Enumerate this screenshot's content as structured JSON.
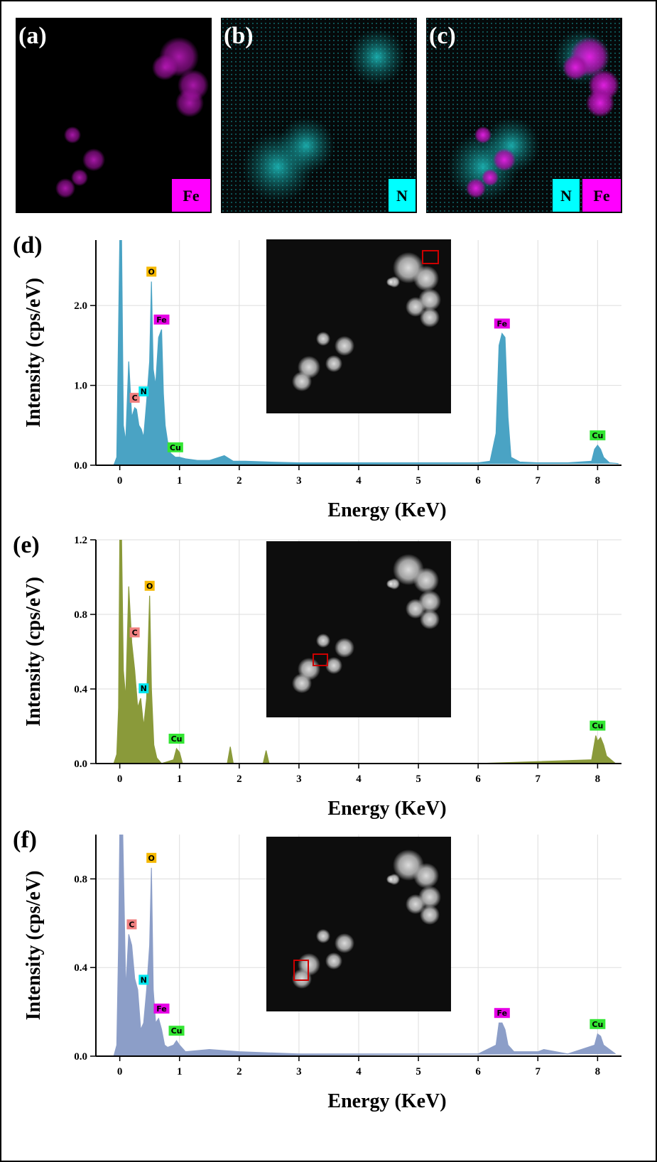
{
  "maps": [
    {
      "label": "(a)",
      "elements": [
        {
          "name": "Fe",
          "color": "#ff00ff"
        }
      ]
    },
    {
      "label": "(b)",
      "elements": [
        {
          "name": "N",
          "color": "#00ffff"
        }
      ]
    },
    {
      "label": "(c)",
      "elements": [
        {
          "name": "N",
          "color": "#00ffff"
        },
        {
          "name": "Fe",
          "color": "#ff00ff"
        }
      ]
    }
  ],
  "chart_data": [
    {
      "type": "area",
      "label": "(d)",
      "x_label": "Energy (KeV)",
      "y_label": "Intensity (cps/eV)",
      "xlim": [
        -0.4,
        8.4
      ],
      "xticks": [
        0,
        1,
        2,
        3,
        4,
        5,
        6,
        7,
        8
      ],
      "ylim": [
        0,
        2.82
      ],
      "yticks": [
        {
          "value": 0,
          "label": "0.0"
        },
        {
          "value": 1,
          "label": "1.0"
        },
        {
          "value": 2,
          "label": "2.0"
        }
      ],
      "grid": true,
      "x": [
        -0.1,
        -0.05,
        0,
        0.03,
        0.06,
        0.1,
        0.15,
        0.2,
        0.25,
        0.28,
        0.32,
        0.36,
        0.4,
        0.45,
        0.5,
        0.53,
        0.56,
        0.6,
        0.65,
        0.7,
        0.73,
        0.76,
        0.8,
        0.85,
        0.93,
        1.0,
        1.1,
        1.3,
        1.5,
        1.75,
        1.9,
        2.1,
        2.5,
        3,
        3.5,
        4,
        4.5,
        5,
        5.5,
        6,
        6.2,
        6.3,
        6.35,
        6.4,
        6.45,
        6.5,
        6.55,
        6.7,
        7,
        7.5,
        7.9,
        7.95,
        8.0,
        8.05,
        8.1,
        8.2,
        8.35
      ],
      "series": [
        {
          "color": "#4aa3c4",
          "values": [
            0,
            0.1,
            2.82,
            2.82,
            0.5,
            0.3,
            1.3,
            0.6,
            0.72,
            0.7,
            0.5,
            0.45,
            0.35,
            0.8,
            1.3,
            2.3,
            1.2,
            1.0,
            1.6,
            1.7,
            0.9,
            0.5,
            0.3,
            0.15,
            0.1,
            0.1,
            0.08,
            0.06,
            0.06,
            0.12,
            0.05,
            0.05,
            0.04,
            0.03,
            0.03,
            0.03,
            0.03,
            0.03,
            0.03,
            0.03,
            0.05,
            0.4,
            1.5,
            1.65,
            1.6,
            0.6,
            0.1,
            0.04,
            0.03,
            0.03,
            0.05,
            0.2,
            0.25,
            0.2,
            0.1,
            0.03,
            0.02
          ]
        }
      ],
      "annotations": [
        {
          "text": "C",
          "x": 0.25,
          "color": "#f08080"
        },
        {
          "text": "N",
          "x": 0.4,
          "color": "#00e5ee"
        },
        {
          "text": "O",
          "x": 0.53,
          "color": "#f5b800"
        },
        {
          "text": "Fe",
          "x": 0.7,
          "color": "#e600e6"
        },
        {
          "text": "Cu",
          "x": 0.93,
          "color": "#33e633"
        },
        {
          "text": "Fe",
          "x": 6.4,
          "color": "#e600e6"
        },
        {
          "text": "Cu",
          "x": 8.0,
          "color": "#33e633"
        }
      ]
    },
    {
      "type": "area",
      "label": "(e)",
      "x_label": "Energy (KeV)",
      "y_label": "Intensity (cps/eV)",
      "xlim": [
        -0.4,
        8.4
      ],
      "xticks": [
        0,
        1,
        2,
        3,
        4,
        5,
        6,
        7,
        8
      ],
      "ylim": [
        0,
        1.2
      ],
      "yticks": [
        {
          "value": 0,
          "label": "0.0"
        },
        0.4,
        0.8,
        1.2
      ],
      "grid": true,
      "x": [
        -0.1,
        -0.05,
        -0.02,
        0,
        0.03,
        0.06,
        0.1,
        0.15,
        0.2,
        0.25,
        0.3,
        0.35,
        0.4,
        0.45,
        0.5,
        0.53,
        0.57,
        0.62,
        0.7,
        0.9,
        0.95,
        1.0,
        1.05,
        1.8,
        1.85,
        1.9,
        2.4,
        2.45,
        2.5,
        4,
        6,
        7.9,
        7.97,
        8.0,
        8.05,
        8.1,
        8.15,
        8.3
      ],
      "series": [
        {
          "color": "#8a9a3a",
          "values": [
            0,
            0.05,
            0.3,
            1.2,
            1.2,
            0.5,
            0.35,
            0.95,
            0.65,
            0.5,
            0.3,
            0.35,
            0.2,
            0.35,
            0.9,
            0.4,
            0.1,
            0.03,
            0,
            0.02,
            0.08,
            0.06,
            0,
            0,
            0.09,
            0,
            0,
            0.07,
            0,
            0,
            0,
            0.02,
            0.15,
            0.12,
            0.14,
            0.1,
            0.04,
            0
          ]
        }
      ],
      "annotations": [
        {
          "text": "C",
          "x": 0.25,
          "color": "#f08080"
        },
        {
          "text": "N",
          "x": 0.4,
          "color": "#00e5ee"
        },
        {
          "text": "O",
          "x": 0.5,
          "color": "#f5b800"
        },
        {
          "text": "Cu",
          "x": 0.95,
          "color": "#33e633"
        },
        {
          "text": "Cu",
          "x": 8.0,
          "color": "#33e633"
        }
      ]
    },
    {
      "type": "area",
      "label": "(f)",
      "x_label": "Energy (KeV)",
      "y_label": "Intensity (cps/eV)",
      "xlim": [
        -0.4,
        8.4
      ],
      "xticks": [
        0,
        1,
        2,
        3,
        4,
        5,
        6,
        7,
        8
      ],
      "ylim": [
        0,
        1.0
      ],
      "yticks": [
        {
          "value": 0,
          "label": "0.0"
        },
        0.4,
        0.8
      ],
      "grid": true,
      "x": [
        -0.1,
        -0.05,
        -0.02,
        0,
        0.05,
        0.1,
        0.15,
        0.2,
        0.25,
        0.3,
        0.35,
        0.4,
        0.45,
        0.5,
        0.53,
        0.56,
        0.6,
        0.65,
        0.7,
        0.75,
        0.8,
        0.9,
        0.95,
        1.0,
        1.1,
        1.5,
        2,
        3,
        4,
        5,
        6,
        6.3,
        6.35,
        6.4,
        6.45,
        6.5,
        6.6,
        7,
        7.1,
        7.5,
        7.95,
        8.0,
        8.05,
        8.1,
        8.3
      ],
      "series": [
        {
          "color": "#8c9ec8",
          "values": [
            0,
            0.05,
            0.5,
            1.0,
            1.0,
            0.3,
            0.55,
            0.5,
            0.35,
            0.3,
            0.12,
            0.15,
            0.3,
            0.5,
            0.85,
            0.3,
            0.15,
            0.17,
            0.12,
            0.05,
            0.04,
            0.05,
            0.07,
            0.05,
            0.02,
            0.03,
            0.02,
            0.01,
            0.01,
            0.01,
            0.01,
            0.05,
            0.15,
            0.15,
            0.12,
            0.05,
            0.02,
            0.02,
            0.03,
            0.01,
            0.05,
            0.1,
            0.09,
            0.05,
            0.01
          ]
        }
      ],
      "annotations": [
        {
          "text": "C",
          "x": 0.2,
          "color": "#f08080"
        },
        {
          "text": "N",
          "x": 0.4,
          "color": "#00e5ee"
        },
        {
          "text": "O",
          "x": 0.53,
          "color": "#f5b800"
        },
        {
          "text": "Fe",
          "x": 0.7,
          "color": "#e600e6"
        },
        {
          "text": "Cu",
          "x": 0.95,
          "color": "#33e633"
        },
        {
          "text": "Fe",
          "x": 6.4,
          "color": "#e600e6"
        },
        {
          "text": "Cu",
          "x": 8.0,
          "color": "#33e633"
        }
      ]
    }
  ]
}
